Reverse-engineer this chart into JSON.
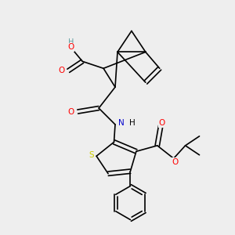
{
  "background_color": "#eeeeee",
  "atom_colors": {
    "C": "#000000",
    "O": "#ff0000",
    "N": "#0000cd",
    "S": "#cccc00",
    "H_teal": "#5f9ea0"
  },
  "figsize": [
    3.0,
    3.0
  ],
  "dpi": 100,
  "lw": 1.2,
  "fontsize": 7.5
}
